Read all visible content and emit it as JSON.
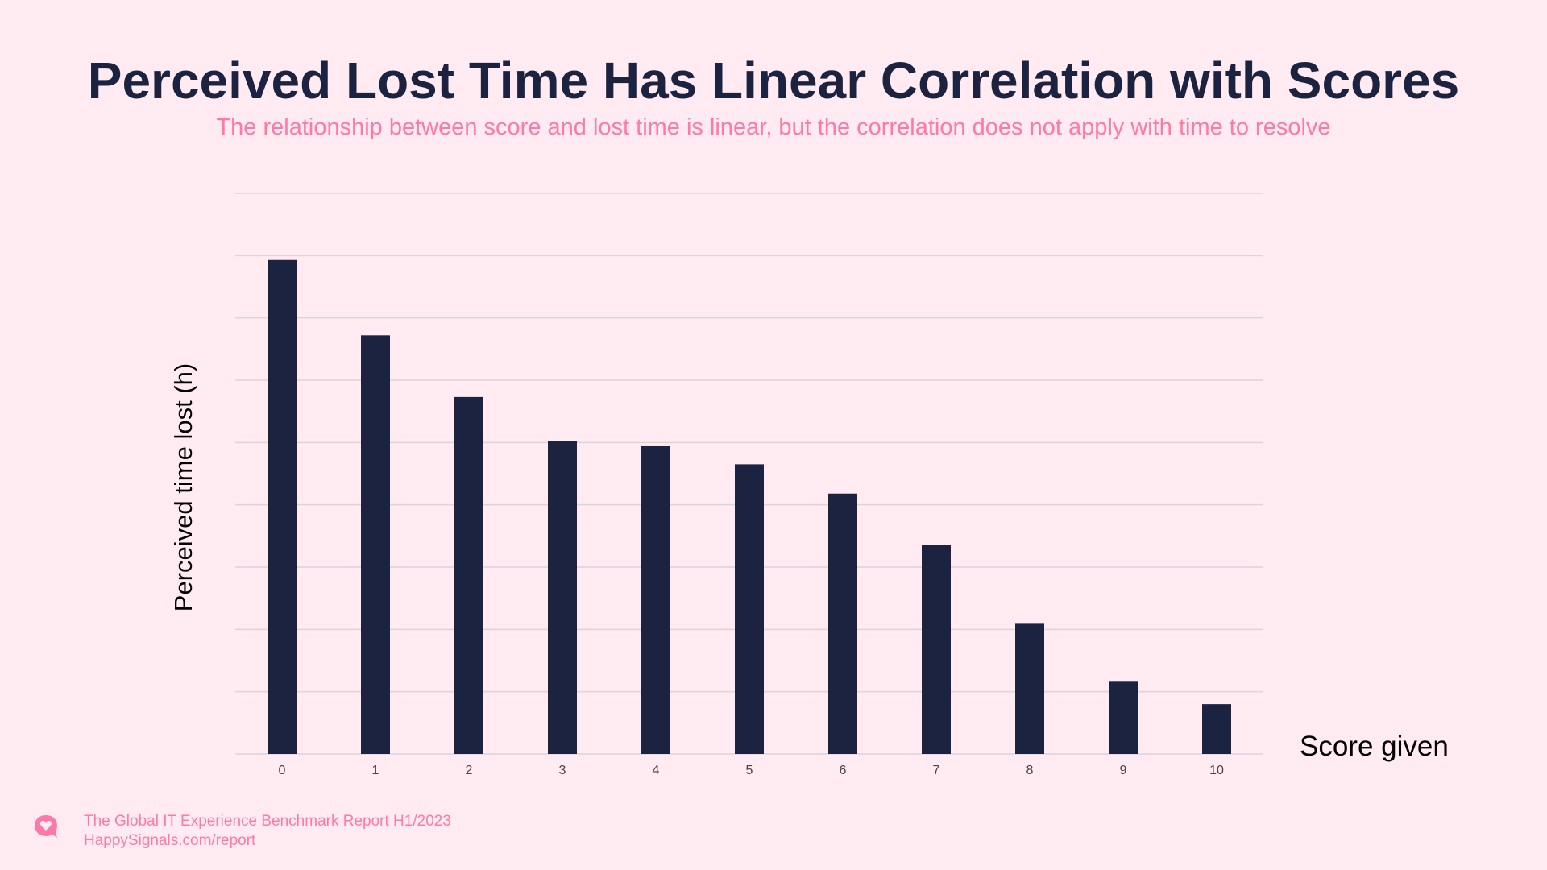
{
  "title": "Perceived Lost Time Has Linear Correlation with Scores",
  "subtitle": "The relationship between score and lost time is linear, but the correlation does not apply with time to resolve",
  "footer": {
    "report_name": "The Global IT Experience Benchmark Report H1/2023",
    "url": "HappySignals.com/report",
    "logo_icon": "heart-speech-bubble-icon"
  },
  "colors": {
    "background": "#ffebf1",
    "bar": "#1c2340",
    "title": "#1c2340",
    "accent": "#ff79a8",
    "grid": "#d9d5db"
  },
  "chart_data": {
    "type": "bar",
    "categories": [
      "0",
      "1",
      "2",
      "3",
      "4",
      "5",
      "6",
      "7",
      "8",
      "9",
      "10"
    ],
    "values": [
      7.93,
      6.72,
      5.73,
      5.03,
      4.94,
      4.65,
      4.18,
      3.36,
      2.09,
      1.16,
      0.8
    ],
    "xlabel": "Score given",
    "ylabel": "Perceived time lost (h)",
    "ylim": [
      0,
      9
    ],
    "y_tick_labels_shown": false,
    "grid": true,
    "legend": "none"
  }
}
